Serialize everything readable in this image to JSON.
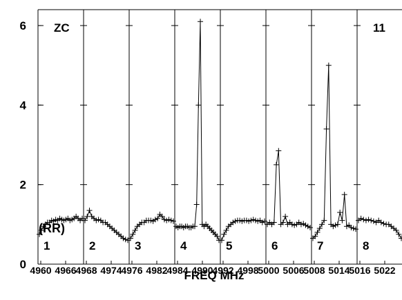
{
  "chart_data": {
    "type": "line",
    "title": "",
    "xlabel": "FREQ MHz",
    "ylabel": "(RR)",
    "ylim": [
      0,
      6.4
    ],
    "yticks": [
      0,
      2,
      4,
      6
    ],
    "tag_left": "ZC",
    "tag_right": "11",
    "grid": false,
    "marker": "+",
    "color": "#000000",
    "panels": [
      {
        "number": "1",
        "x_tick_labels": [
          "4960",
          "4966"
        ],
        "values": [
          0.75,
          0.85,
          0.95,
          1.0,
          1.05,
          1.05,
          1.1,
          1.08,
          1.12,
          1.1,
          1.15,
          1.12,
          1.1,
          1.12,
          1.15,
          1.1,
          1.12,
          1.15,
          1.2,
          1.15,
          1.1,
          1.15
        ]
      },
      {
        "number": "2",
        "x_tick_labels": [
          "4968",
          "4974"
        ],
        "values": [
          1.1,
          1.2,
          1.35,
          1.2,
          1.15,
          1.1,
          1.12,
          1.1,
          1.05,
          1.05,
          1.0,
          0.95,
          0.9,
          0.85,
          0.8,
          0.75,
          0.7,
          0.65,
          0.62,
          0.6
        ]
      },
      {
        "number": "3",
        "x_tick_labels": [
          "4976",
          "4982"
        ],
        "values": [
          0.65,
          0.75,
          0.85,
          0.95,
          1.0,
          1.05,
          1.05,
          1.1,
          1.1,
          1.1,
          1.08,
          1.12,
          1.15,
          1.25,
          1.2,
          1.12,
          1.1,
          1.12,
          1.1,
          1.08
        ]
      },
      {
        "number": "4",
        "x_tick_labels": [
          "4984",
          "4990"
        ],
        "values": [
          0.95,
          0.92,
          0.95,
          0.95,
          0.92,
          0.95,
          0.95,
          0.92,
          0.92,
          0.95,
          0.95,
          1.5,
          4.0,
          6.1,
          1.0,
          0.95,
          1.0,
          0.95,
          0.9,
          0.85,
          0.8,
          0.75,
          0.7,
          0.6
        ]
      },
      {
        "number": "5",
        "x_tick_labels": [
          "4992",
          "4998"
        ],
        "values": [
          0.6,
          0.75,
          0.85,
          0.95,
          1.0,
          1.05,
          1.08,
          1.1,
          1.1,
          1.08,
          1.1,
          1.1,
          1.08,
          1.1,
          1.12,
          1.1,
          1.08,
          1.1,
          1.05,
          1.08
        ]
      },
      {
        "number": "6",
        "x_tick_labels": [
          "5000",
          "5006"
        ],
        "values": [
          1.0,
          1.05,
          1.0,
          1.05,
          2.5,
          2.85,
          1.0,
          1.05,
          1.2,
          1.0,
          1.05,
          1.0,
          0.98,
          1.0,
          1.05,
          1.0,
          1.02,
          0.98,
          0.95,
          0.92
        ]
      },
      {
        "number": "7",
        "x_tick_labels": [
          "5008",
          "5014"
        ],
        "values": [
          0.65,
          0.7,
          0.8,
          0.9,
          1.0,
          1.1,
          3.4,
          5.0,
          1.0,
          0.95,
          0.98,
          1.0,
          1.3,
          1.1,
          1.75,
          0.95,
          0.98,
          0.92,
          0.9,
          0.88
        ]
      },
      {
        "number": "8",
        "x_tick_labels": [
          "5016",
          "5022"
        ],
        "values": [
          1.1,
          1.15,
          1.12,
          1.1,
          1.12,
          1.1,
          1.08,
          1.05,
          1.1,
          1.05,
          1.02,
          1.0,
          1.0,
          0.95,
          0.9,
          0.85,
          0.75,
          0.65
        ]
      }
    ]
  }
}
